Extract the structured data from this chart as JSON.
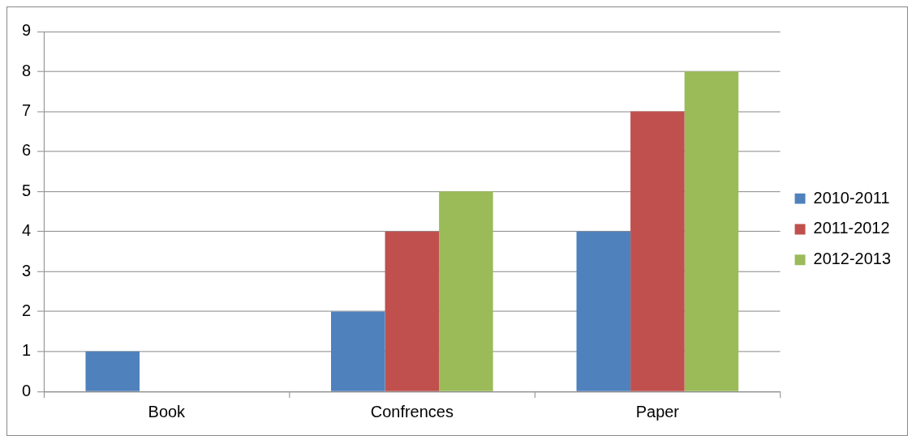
{
  "chart_data": {
    "type": "bar",
    "categories": [
      "Book",
      "Confrences",
      "Paper"
    ],
    "series": [
      {
        "name": "2010-2011",
        "color": "#4f81bd",
        "values": [
          1,
          2,
          4
        ]
      },
      {
        "name": "2011-2012",
        "color": "#c0504d",
        "values": [
          0,
          4,
          7
        ]
      },
      {
        "name": "2012-2013",
        "color": "#9bbb59",
        "values": [
          0,
          5,
          8
        ]
      }
    ],
    "ylim": [
      0,
      9
    ],
    "yticks": [
      0,
      1,
      2,
      3,
      4,
      5,
      6,
      7,
      8,
      9
    ],
    "grid": "y",
    "legend": "right"
  }
}
